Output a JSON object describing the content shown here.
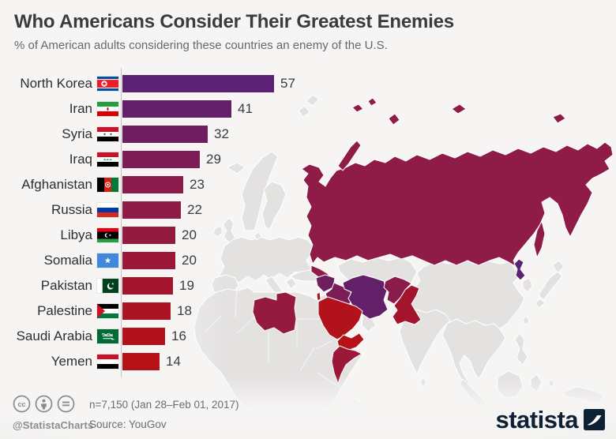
{
  "chart_data": {
    "type": "bar",
    "orientation": "horizontal",
    "title": "Who Americans Consider Their Greatest Enemies",
    "subtitle": "% of American adults considering these countries an enemy of the U.S.",
    "xlim": [
      0,
      60
    ],
    "grid": false,
    "legend": "none",
    "rows": [
      {
        "label": "North Korea",
        "value": 57,
        "color": "#5b2173",
        "flag": "north-korea"
      },
      {
        "label": "Iran",
        "value": 41,
        "color": "#632068",
        "flag": "iran"
      },
      {
        "label": "Syria",
        "value": 32,
        "color": "#6f1f5f",
        "flag": "syria"
      },
      {
        "label": "Iraq",
        "value": 29,
        "color": "#7c1e55",
        "flag": "iraq"
      },
      {
        "label": "Afghanistan",
        "value": 23,
        "color": "#8a1c4b",
        "flag": "afghanistan"
      },
      {
        "label": "Russia",
        "value": 22,
        "color": "#8f1b47",
        "flag": "russia"
      },
      {
        "label": "Libya",
        "value": 20,
        "color": "#951a40",
        "flag": "libya"
      },
      {
        "label": "Somalia",
        "value": 20,
        "color": "#9c1838",
        "flag": "somalia"
      },
      {
        "label": "Pakistan",
        "value": 19,
        "color": "#a3152d",
        "flag": "pakistan"
      },
      {
        "label": "Palestine",
        "value": 18,
        "color": "#aa1425",
        "flag": "palestine"
      },
      {
        "label": "Saudi Arabia",
        "value": 16,
        "color": "#b1121c",
        "flag": "saudi-arabia"
      },
      {
        "label": "Yemen",
        "value": 14,
        "color": "#b61217",
        "flag": "yemen"
      }
    ]
  },
  "map": {
    "land_color": "#e4e2e1",
    "border_color": "#ffffff",
    "sea_color": "#f6f5f4",
    "countries": {
      "russia": "#8f1b47",
      "north-korea": "#5b2173",
      "iran": "#632068",
      "syria": "#6f1f5f",
      "iraq": "#7c1e55",
      "afghanistan": "#8a1c4b",
      "libya": "#951a40",
      "somalia": "#9c1838",
      "pakistan": "#a3152d",
      "palestine": "#aa1425",
      "saudi-arabia": "#b1121c",
      "yemen": "#b61217"
    }
  },
  "footer": {
    "handle": "@StatistaCharts",
    "sample_note": "n=7,150 (Jan 28–Feb 01, 2017)",
    "source": "Source: YouGov",
    "brand": "statista",
    "icon_names": [
      "creative-commons-icon",
      "attribution-icon",
      "equal-license-icon"
    ],
    "text_color": "#8c8c8c",
    "brand_color": "#0d2136"
  }
}
